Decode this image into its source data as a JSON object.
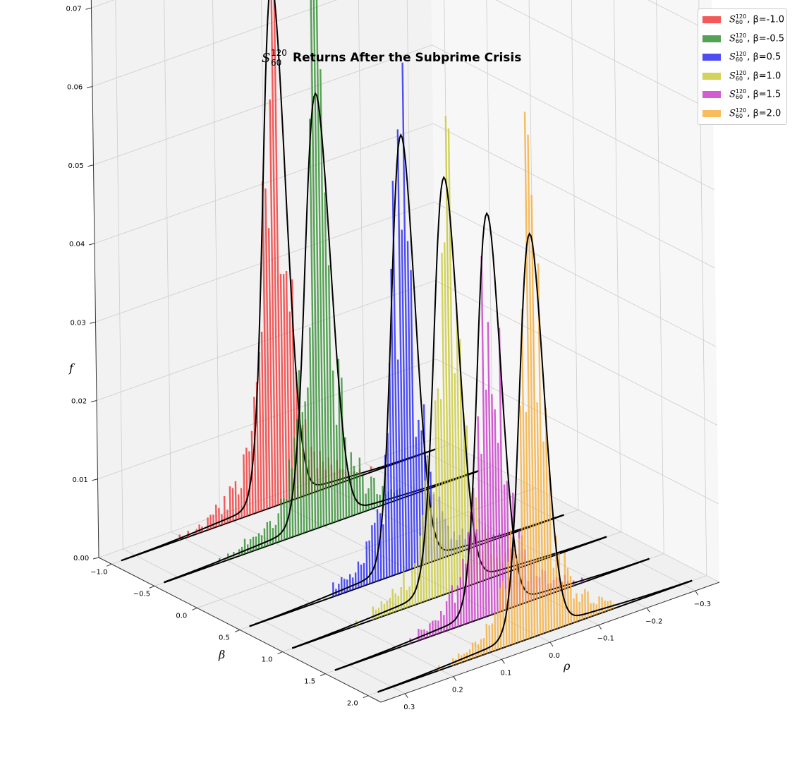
{
  "chart_data": {
    "type": "3d-histogram",
    "title": {
      "symbol": "S",
      "superscript": "120",
      "subscript": "60",
      "text": "Returns After the Subprime Crisis"
    },
    "xlabel": "ρ",
    "ylabel": "β",
    "zlabel": "f",
    "x_ticks": [
      "0.3",
      "0.2",
      "0.1",
      "0.0",
      "−0.1",
      "−0.2",
      "−0.3"
    ],
    "y_ticks": [
      "−1.0",
      "−0.5",
      "0.0",
      "0.5",
      "1.0",
      "1.5",
      "2.0"
    ],
    "z_ticks": [
      "0.00",
      "0.01",
      "0.02",
      "0.03",
      "0.04",
      "0.05",
      "0.06",
      "0.07"
    ],
    "series": [
      {
        "name": "S_60^120, β=-1.0",
        "beta": -1.0,
        "color": "#f03030",
        "hist_peak": 0.0865,
        "fit_peak": 0.0657,
        "fit_center": 0.005,
        "fit_width": 0.025
      },
      {
        "name": "S_60^120, β=-0.5",
        "beta": -0.5,
        "color": "#2a8a2a",
        "hist_peak": 0.0675,
        "fit_peak": 0.0544,
        "fit_center": 0.005,
        "fit_width": 0.028
      },
      {
        "name": "S_60^120, β=0.5",
        "beta": 0.5,
        "color": "#2020f0",
        "hist_peak": 0.0715,
        "fit_peak": 0.0547,
        "fit_center": 0.005,
        "fit_width": 0.026
      },
      {
        "name": "S_60^120, β=1.0",
        "beta": 1.0,
        "color": "#c8c832",
        "hist_peak": 0.0635,
        "fit_peak": 0.0521,
        "fit_center": 0.005,
        "fit_width": 0.027
      },
      {
        "name": "S_60^120, β=1.5",
        "beta": 1.5,
        "color": "#c832c8",
        "hist_peak": 0.0625,
        "fit_peak": 0.0503,
        "fit_center": 0.005,
        "fit_width": 0.026
      },
      {
        "name": "S_60^120, β=2.0",
        "beta": 2.0,
        "color": "#f5ac35",
        "hist_peak": 0.0605,
        "fit_peak": 0.0505,
        "fit_center": 0.005,
        "fit_width": 0.027
      }
    ],
    "legend_position": "top-right",
    "grid": true
  },
  "legend": [
    {
      "base": "S",
      "sup": "120",
      "sub": "60",
      "label": ", β=-1.0",
      "color": "#f03030"
    },
    {
      "base": "S",
      "sup": "120",
      "sub": "60",
      "label": ", β=-0.5",
      "color": "#2a8a2a"
    },
    {
      "base": "S",
      "sup": "120",
      "sub": "60",
      "label": ", β=0.5",
      "color": "#2020f0"
    },
    {
      "base": "S",
      "sup": "120",
      "sub": "60",
      "label": ", β=1.0",
      "color": "#c8c832"
    },
    {
      "base": "S",
      "sup": "120",
      "sub": "60",
      "label": ", β=1.5",
      "color": "#c832c8"
    },
    {
      "base": "S",
      "sup": "120",
      "sub": "60",
      "label": ", β=2.0",
      "color": "#f5ac35"
    }
  ]
}
